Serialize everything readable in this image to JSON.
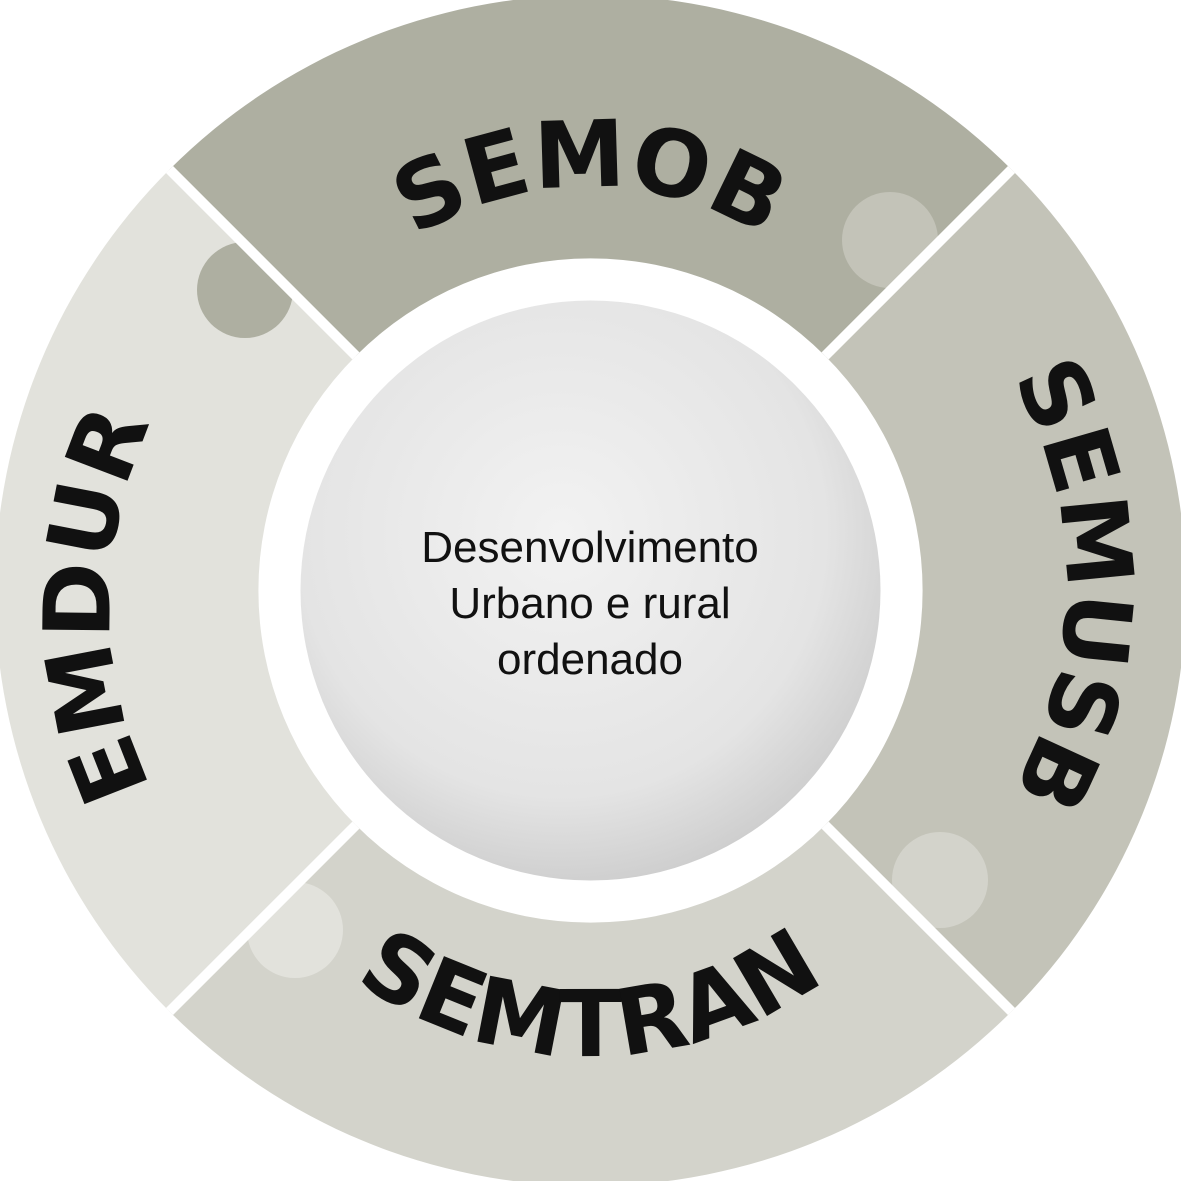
{
  "segments": {
    "top": {
      "label": "SEMOB",
      "color": "#aeafa1"
    },
    "right": {
      "label": "SEMUSB",
      "color": "#c3c3b8"
    },
    "bottom": {
      "label": "SEMTRAN",
      "color": "#d3d3cb"
    },
    "left": {
      "label": "EMDUR",
      "color": "#e2e2dc"
    }
  },
  "center": {
    "line1": "Desenvolvimento",
    "line2": "Urbano e rural",
    "line3": "ordenado"
  }
}
